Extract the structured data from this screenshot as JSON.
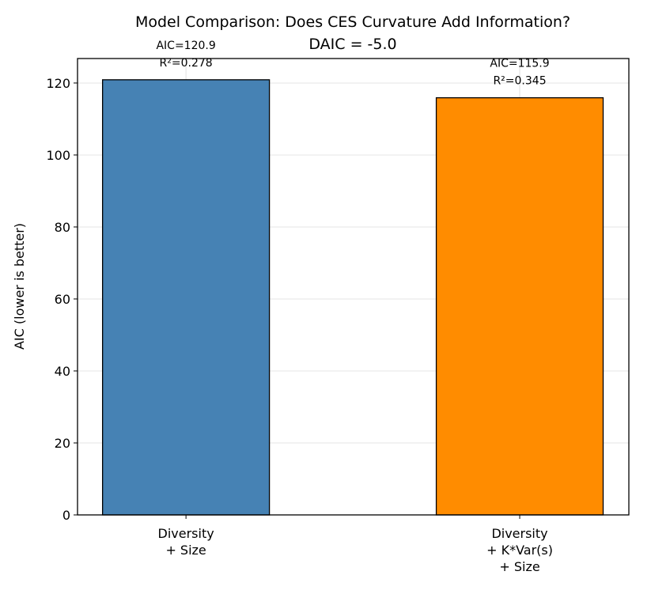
{
  "chart_data": {
    "type": "bar",
    "title": "Model Comparison: Does CES Curvature Add Information?",
    "subtitle": "DAIC = -5.0",
    "xlabel": "",
    "ylabel": "AIC (lower is better)",
    "categories": [
      [
        "Diversity",
        "+ Size"
      ],
      [
        "Diversity",
        "+ K*Var(s)",
        "+ Size"
      ]
    ],
    "values": [
      120.9,
      115.9
    ],
    "bar_labels": [
      [
        "AIC=120.9",
        "R²=0.278"
      ],
      [
        "AIC=115.9",
        "R²=0.345"
      ]
    ],
    "colors": [
      "#4682b4",
      "#ff8c00"
    ],
    "edge_color": "#000000",
    "ylim": [
      0,
      126.8
    ],
    "yticks": [
      0,
      20,
      40,
      60,
      80,
      100,
      120
    ],
    "grid": true,
    "legend": "none"
  }
}
